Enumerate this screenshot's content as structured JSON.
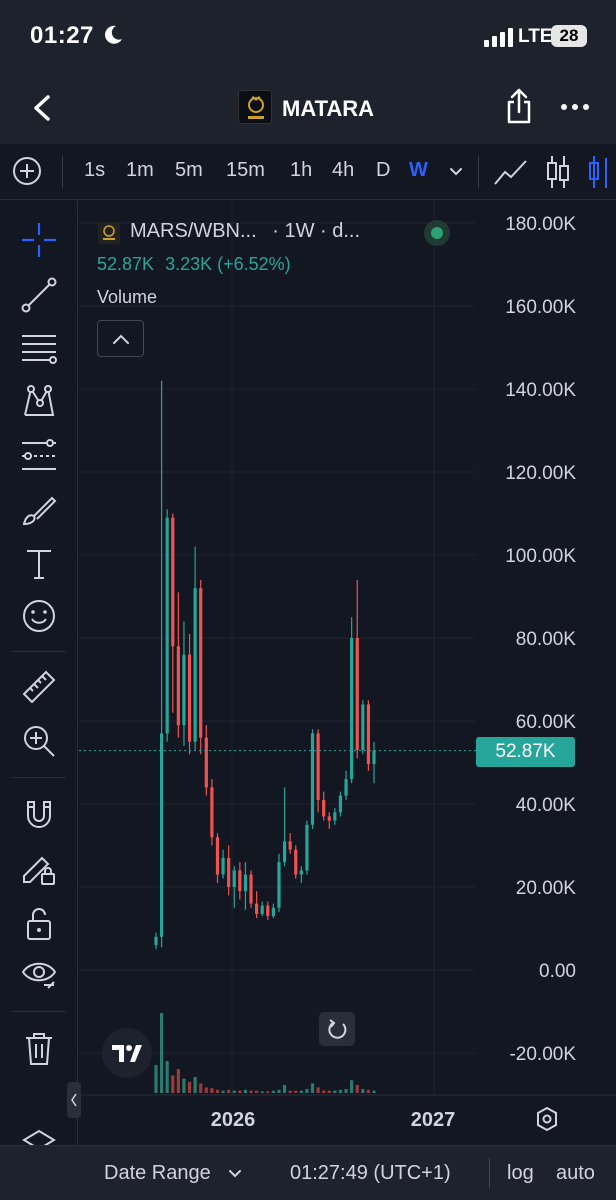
{
  "status_bar": {
    "time": "01:27",
    "network": "LTE",
    "battery": "28"
  },
  "nav": {
    "title": "MATARA"
  },
  "intervals": [
    {
      "label": "1s",
      "active": false
    },
    {
      "label": "1m",
      "active": false
    },
    {
      "label": "5m",
      "active": false
    },
    {
      "label": "15m",
      "active": false
    },
    {
      "label": "1h",
      "active": false
    },
    {
      "label": "4h",
      "active": false
    },
    {
      "label": "D",
      "active": false
    },
    {
      "label": "W",
      "active": true
    }
  ],
  "legend": {
    "symbol": "MARS/WBN...",
    "interval": "· 1W · d...",
    "last": "52.87K",
    "change": "3.23K (+6.52%)",
    "volume_label": "Volume"
  },
  "price_tag": "52.87K",
  "bottom_bar": {
    "date_range": "Date Range",
    "clock": "01:27:49 (UTC+1)",
    "log": "log",
    "auto": "auto"
  },
  "colors": {
    "up": "#26a69a",
    "down": "#ef5350",
    "background": "#131722",
    "accent": "#2962ff"
  },
  "chart_data": {
    "type": "candlestick",
    "y_axis_ticks": [
      "180.00K",
      "160.00K",
      "140.00K",
      "120.00K",
      "100.00K",
      "80.00K",
      "60.00K",
      "40.00K",
      "20.00K",
      "0.00",
      "-20.00K"
    ],
    "x_axis_ticks": [
      "2026",
      "2027"
    ],
    "ylim": [
      -25000,
      185000
    ],
    "last_price": 52870,
    "series": [
      {
        "o": 6000,
        "h": 9000,
        "l": 5000,
        "c": 8000
      },
      {
        "o": 8000,
        "h": 142000,
        "l": 5500,
        "c": 57000
      },
      {
        "o": 57000,
        "h": 111000,
        "l": 55000,
        "c": 109000
      },
      {
        "o": 109000,
        "h": 110000,
        "l": 62000,
        "c": 78000
      },
      {
        "o": 78000,
        "h": 91000,
        "l": 56000,
        "c": 59000
      },
      {
        "o": 59000,
        "h": 84000,
        "l": 54000,
        "c": 76000
      },
      {
        "o": 76000,
        "h": 81000,
        "l": 52000,
        "c": 55000
      },
      {
        "o": 55000,
        "h": 102000,
        "l": 53000,
        "c": 92000
      },
      {
        "o": 92000,
        "h": 94000,
        "l": 52000,
        "c": 56000
      },
      {
        "o": 56000,
        "h": 59000,
        "l": 42000,
        "c": 44000
      },
      {
        "o": 44000,
        "h": 46000,
        "l": 30000,
        "c": 32000
      },
      {
        "o": 32000,
        "h": 33000,
        "l": 21000,
        "c": 23000
      },
      {
        "o": 23000,
        "h": 29000,
        "l": 22000,
        "c": 27000
      },
      {
        "o": 27000,
        "h": 30000,
        "l": 18000,
        "c": 20000
      },
      {
        "o": 20000,
        "h": 25000,
        "l": 15000,
        "c": 24000
      },
      {
        "o": 24000,
        "h": 26000,
        "l": 17000,
        "c": 19000
      },
      {
        "o": 19000,
        "h": 26000,
        "l": 14500,
        "c": 23000
      },
      {
        "o": 23000,
        "h": 24000,
        "l": 15000,
        "c": 16000
      },
      {
        "o": 16000,
        "h": 19000,
        "l": 12500,
        "c": 13500
      },
      {
        "o": 13500,
        "h": 16500,
        "l": 13000,
        "c": 15500
      },
      {
        "o": 15500,
        "h": 16500,
        "l": 12000,
        "c": 13000
      },
      {
        "o": 13000,
        "h": 16000,
        "l": 12500,
        "c": 15000
      },
      {
        "o": 15000,
        "h": 28000,
        "l": 14000,
        "c": 26000
      },
      {
        "o": 26000,
        "h": 44000,
        "l": 25000,
        "c": 31000
      },
      {
        "o": 31000,
        "h": 33000,
        "l": 28000,
        "c": 29000
      },
      {
        "o": 29000,
        "h": 30000,
        "l": 22000,
        "c": 23000
      },
      {
        "o": 23000,
        "h": 25000,
        "l": 21000,
        "c": 24000
      },
      {
        "o": 24000,
        "h": 36000,
        "l": 23000,
        "c": 35000
      },
      {
        "o": 35000,
        "h": 58000,
        "l": 34000,
        "c": 57000
      },
      {
        "o": 57000,
        "h": 58000,
        "l": 38000,
        "c": 41000
      },
      {
        "o": 41000,
        "h": 43000,
        "l": 36000,
        "c": 37000
      },
      {
        "o": 37000,
        "h": 38000,
        "l": 34000,
        "c": 36000
      },
      {
        "o": 36000,
        "h": 39000,
        "l": 35000,
        "c": 38000
      },
      {
        "o": 38000,
        "h": 43000,
        "l": 37000,
        "c": 42000
      },
      {
        "o": 42000,
        "h": 48000,
        "l": 41000,
        "c": 46000
      },
      {
        "o": 46000,
        "h": 85000,
        "l": 45000,
        "c": 80000
      },
      {
        "o": 80000,
        "h": 94000,
        "l": 51000,
        "c": 53000
      },
      {
        "o": 53000,
        "h": 65000,
        "l": 52000,
        "c": 64000
      },
      {
        "o": 64000,
        "h": 65000,
        "l": 48000,
        "c": 49640
      },
      {
        "o": 49640,
        "h": 55000,
        "l": 45000,
        "c": 52870
      }
    ],
    "volume": [
      35,
      100,
      40,
      22,
      30,
      18,
      14,
      20,
      12,
      7,
      6,
      4,
      3,
      4,
      3,
      3,
      4,
      3,
      3,
      2,
      2,
      3,
      4,
      10,
      3,
      3,
      3,
      5,
      12,
      7,
      3,
      3,
      3,
      4,
      5,
      16,
      10,
      5,
      4,
      3
    ],
    "grid": true,
    "legend_position": "top-left"
  }
}
